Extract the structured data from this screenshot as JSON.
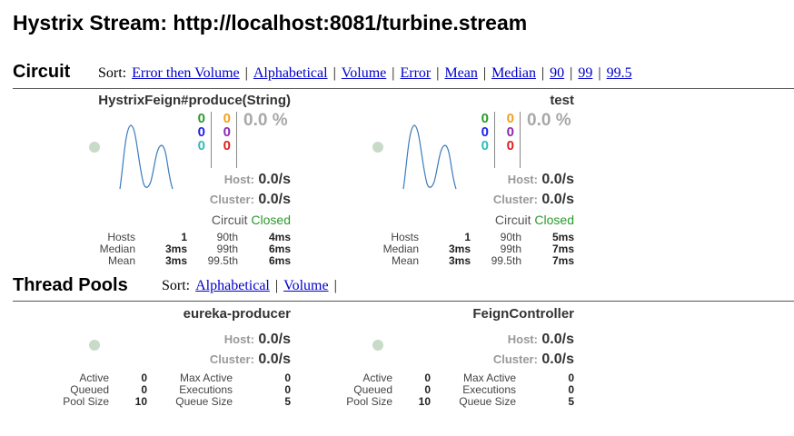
{
  "page": {
    "title": "Hystrix Stream: http://localhost:8081/turbine.stream"
  },
  "circuit": {
    "title": "Circuit",
    "sort_label": "Sort:",
    "sort_options": [
      "Error then Volume",
      "Alphabetical",
      "Volume",
      "Error",
      "Mean",
      "Median",
      "90",
      "99",
      "99.5"
    ],
    "cards": [
      {
        "name": "HystrixFeign#produce(String)",
        "counts": {
          "success": "0",
          "short_circuited": "0",
          "bad_request": "0",
          "timeout": "0",
          "rejected": "0",
          "failure": "0"
        },
        "error_pct": "0.0 %",
        "host_label": "Host:",
        "host_rate": "0.0/s",
        "cluster_label": "Cluster:",
        "cluster_rate": "0.0/s",
        "circuit_label": "Circuit",
        "circuit_state": "Closed",
        "stats": {
          "hosts_label": "Hosts",
          "hosts": "1",
          "median_label": "Median",
          "median": "3ms",
          "mean_label": "Mean",
          "mean": "3ms",
          "p90_label": "90th",
          "p90": "4ms",
          "p99_label": "99th",
          "p99": "6ms",
          "p995_label": "99.5th",
          "p995": "6ms"
        }
      },
      {
        "name": "test",
        "counts": {
          "success": "0",
          "short_circuited": "0",
          "bad_request": "0",
          "timeout": "0",
          "rejected": "0",
          "failure": "0"
        },
        "error_pct": "0.0 %",
        "host_label": "Host:",
        "host_rate": "0.0/s",
        "cluster_label": "Cluster:",
        "cluster_rate": "0.0/s",
        "circuit_label": "Circuit",
        "circuit_state": "Closed",
        "stats": {
          "hosts_label": "Hosts",
          "hosts": "1",
          "median_label": "Median",
          "median": "3ms",
          "mean_label": "Mean",
          "mean": "3ms",
          "p90_label": "90th",
          "p90": "5ms",
          "p99_label": "99th",
          "p99": "7ms",
          "p995_label": "99.5th",
          "p995": "7ms"
        }
      }
    ]
  },
  "thread_pools": {
    "title": "Thread Pools",
    "sort_label": "Sort:",
    "sort_options": [
      "Alphabetical",
      "Volume"
    ],
    "trailing_sep": "|",
    "cards": [
      {
        "name": "eureka-producer",
        "host_label": "Host:",
        "host_rate": "0.0/s",
        "cluster_label": "Cluster:",
        "cluster_rate": "0.0/s",
        "stats": {
          "active_label": "Active",
          "active": "0",
          "queued_label": "Queued",
          "queued": "0",
          "pool_size_label": "Pool Size",
          "pool_size": "10",
          "max_active_label": "Max Active",
          "max_active": "0",
          "executions_label": "Executions",
          "executions": "0",
          "queue_size_label": "Queue Size",
          "queue_size": "5"
        }
      },
      {
        "name": "FeignController",
        "host_label": "Host:",
        "host_rate": "0.0/s",
        "cluster_label": "Cluster:",
        "cluster_rate": "0.0/s",
        "stats": {
          "active_label": "Active",
          "active": "0",
          "queued_label": "Queued",
          "queued": "0",
          "pool_size_label": "Pool Size",
          "pool_size": "10",
          "max_active_label": "Max Active",
          "max_active": "0",
          "executions_label": "Executions",
          "executions": "0",
          "queue_size_label": "Queue Size",
          "queue_size": "5"
        }
      }
    ]
  },
  "colors": {
    "success": "#2a9a2a",
    "short_circuited": "#2020ee",
    "bad_request": "#30bcbc",
    "timeout": "#f0a020",
    "rejected": "#8a2bb0",
    "failure": "#e02020",
    "link": "#0000cc",
    "health_dot": "#c8dac8",
    "sparkline": "#3b7bbd"
  }
}
